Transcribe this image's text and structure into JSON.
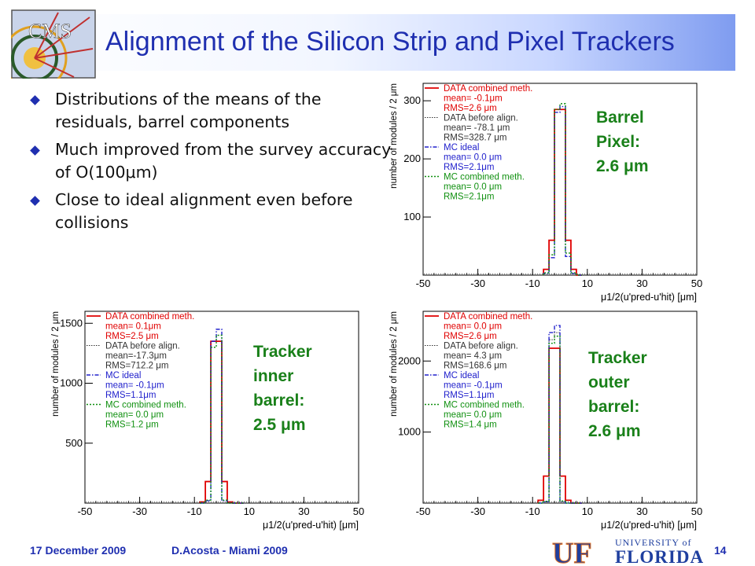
{
  "slide": {
    "title": "Alignment of the Silicon Strip and Pixel Trackers",
    "bullets": [
      "Distributions of the means of the residuals, barrel components",
      "Much improved from the survey accuracy of O(100μm)",
      "Close to ideal alignment even before collisions"
    ],
    "footer": {
      "date": "17 December 2009",
      "author": "D.Acosta  -  Miami 2009",
      "page": "14"
    },
    "logos": {
      "cms": "CMS",
      "uf_letters": "UF",
      "university_of": "UNIVERSITY of",
      "florida": "FLORIDA"
    }
  },
  "colors": {
    "title": "#1f2fb0",
    "annotation": "#198019",
    "data_combined": "#e00000",
    "data_before": "#333333",
    "mc_ideal": "#2020cc",
    "mc_combined": "#109010"
  },
  "chart_data": [
    {
      "id": "pixel",
      "type": "histogram",
      "annotation": "Barrel\nPixel:\n2.6 μm",
      "ylabel": "number of modules / 2 μm",
      "xlabel": "μ1/2(u'pred-u'hit) [μm]",
      "xlim": [
        -50,
        50
      ],
      "ylim": [
        0,
        330
      ],
      "yticks": [
        100,
        200,
        300
      ],
      "xticks": [
        -50,
        -30,
        -10,
        10,
        30,
        50
      ],
      "x_bins_lo": [
        -6,
        -4,
        -2,
        0,
        2,
        4,
        6
      ],
      "series": [
        {
          "key": "data_combined",
          "legend": [
            "DATA combined meth.",
            "mean= -0.1μm",
            "RMS=2.6 μm"
          ],
          "values": [
            10,
            60,
            285,
            285,
            60,
            10,
            0
          ]
        },
        {
          "key": "data_before",
          "legend": [
            "DATA before align.",
            "mean= -78.1 μm",
            "RMS=328.7 μm"
          ],
          "values": []
        },
        {
          "key": "mc_ideal",
          "legend": [
            "MC ideal",
            "mean= 0.0 μm",
            "RMS=2.1μm"
          ],
          "values": [
            3,
            30,
            280,
            290,
            32,
            3,
            0
          ]
        },
        {
          "key": "mc_combined",
          "legend": [
            "MC combined meth.",
            "mean= 0.0 μm",
            "RMS=2.1μm"
          ],
          "values": [
            4,
            35,
            285,
            295,
            38,
            4,
            0
          ]
        }
      ]
    },
    {
      "id": "tib",
      "type": "histogram",
      "annotation": "Tracker\ninner\nbarrel:\n2.5 μm",
      "ylabel": "number of modules / 2 μm",
      "xlabel": "μ1/2(u'pred-u'hit) [μm]",
      "xlim": [
        -50,
        50
      ],
      "ylim": [
        0,
        1600
      ],
      "yticks": [
        500,
        1000,
        1500
      ],
      "xticks": [
        -50,
        -30,
        -10,
        10,
        30,
        50
      ],
      "x_bins_lo": [
        -8,
        -6,
        -4,
        -2,
        0,
        2,
        4,
        6
      ],
      "series": [
        {
          "key": "data_combined",
          "legend": [
            "DATA combined meth.",
            "mean= 0.1μm",
            "RMS=2.5 μm"
          ],
          "values": [
            10,
            180,
            1350,
            1350,
            180,
            10,
            0,
            0
          ]
        },
        {
          "key": "data_before",
          "legend": [
            "DATA before align.",
            "mean=-17.3μm",
            "RMS=712.2 μm"
          ],
          "values": []
        },
        {
          "key": "mc_ideal",
          "legend": [
            "MC ideal",
            "mean= -0.1μm",
            "RMS=1.1μm"
          ],
          "values": [
            0,
            20,
            1350,
            1450,
            20,
            0,
            0,
            0
          ]
        },
        {
          "key": "mc_combined",
          "legend": [
            "MC combined meth.",
            "mean= 0.0  μm",
            "RMS=1.2 μm"
          ],
          "values": [
            0,
            25,
            1300,
            1400,
            25,
            0,
            0,
            0
          ]
        }
      ]
    },
    {
      "id": "tob",
      "type": "histogram",
      "annotation": "Tracker\nouter\nbarrel:\n2.6 μm",
      "ylabel": "number of modules / 2 μm",
      "xlabel": "μ1/2(u'pred-u'hit) [μm]",
      "xlim": [
        -50,
        50
      ],
      "ylim": [
        0,
        2700
      ],
      "yticks": [
        1000,
        2000
      ],
      "xticks": [
        -50,
        -30,
        -10,
        10,
        30,
        50
      ],
      "x_bins_lo": [
        -8,
        -6,
        -4,
        -2,
        0,
        2,
        4,
        6
      ],
      "series": [
        {
          "key": "data_combined",
          "legend": [
            "DATA combined meth.",
            "mean= 0.0  μm",
            "RMS=2.6 μm"
          ],
          "values": [
            40,
            380,
            2180,
            2180,
            380,
            40,
            0,
            0
          ]
        },
        {
          "key": "data_before",
          "legend": [
            "DATA before align.",
            "mean= 4.3 μm",
            "RMS=168.6 μm"
          ],
          "values": [
            0,
            20,
            2300,
            2400,
            20,
            0,
            0,
            0
          ]
        },
        {
          "key": "mc_ideal",
          "legend": [
            "MC ideal",
            "mean= -0.1μm",
            "RMS=1.1μm"
          ],
          "values": [
            0,
            20,
            2400,
            2500,
            25,
            0,
            0,
            0
          ]
        },
        {
          "key": "mc_combined",
          "legend": [
            "MC combined meth.",
            "mean= 0.0  μm",
            "RMS=1.4 μm"
          ],
          "values": [
            0,
            25,
            2250,
            2350,
            30,
            0,
            0,
            0
          ]
        }
      ]
    }
  ]
}
